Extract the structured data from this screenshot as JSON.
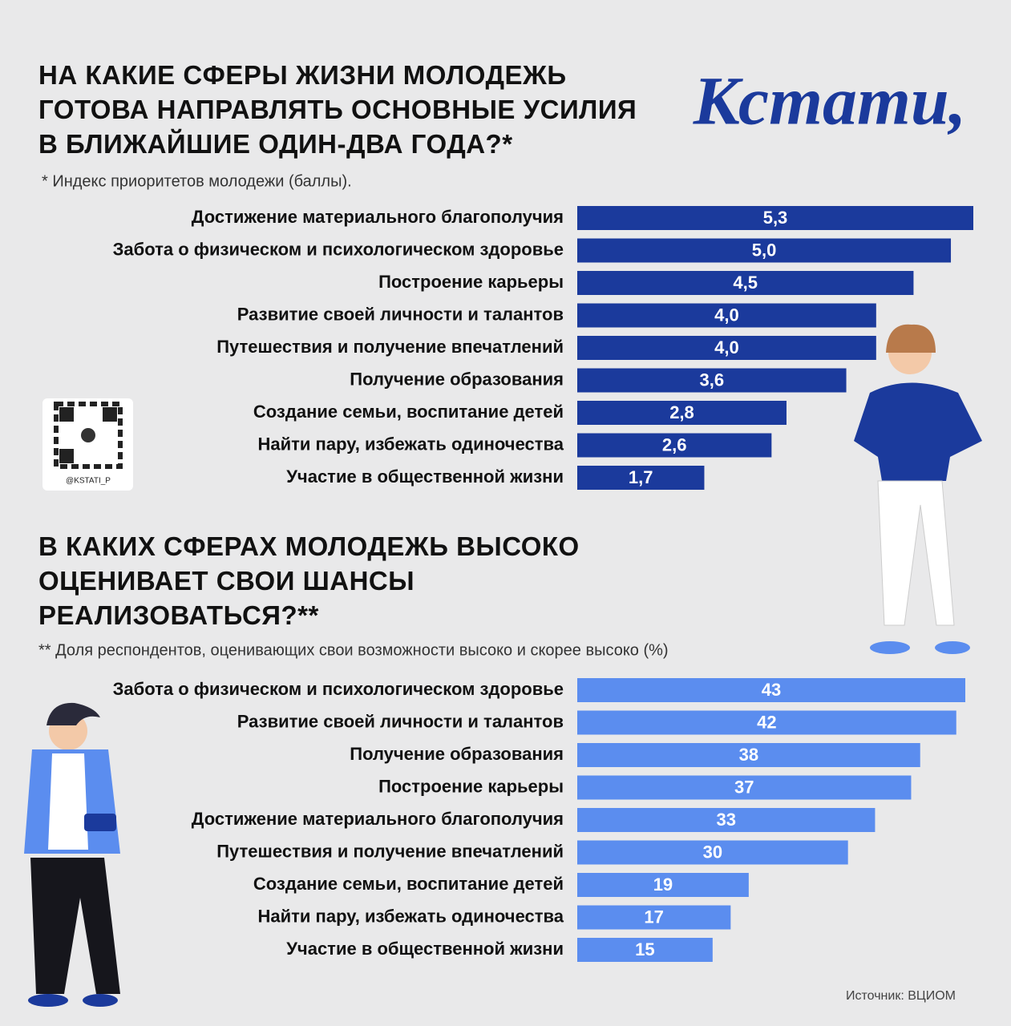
{
  "brand": "Кстати,",
  "qr_label": "@KSTATI_P",
  "source": "Источник: ВЦИОМ",
  "chart_data": [
    {
      "type": "bar",
      "orientation": "horizontal",
      "title": "НА КАКИЕ СФЕРЫ ЖИЗНИ МОЛОДЕЖЬ\nГОТОВА НАПРАВЛЯТЬ ОСНОВНЫЕ УСИЛИЯ\nВ БЛИЖАЙШИЕ ОДИН-ДВА ГОДА?*",
      "subtitle": "* Индекс приоритетов молодежи (баллы).",
      "categories": [
        "Достижение материального благополучия",
        "Забота о физическом и психологическом здоровье",
        "Построение карьеры",
        "Развитие своей личности и талантов",
        "Путешествия и получение впечатлений",
        "Получение образования",
        "Создание семьи, воспитание детей",
        "Найти пару, избежать одиночества",
        "Участие в общественной жизни"
      ],
      "values": [
        5.3,
        5.0,
        4.5,
        4.0,
        4.0,
        3.6,
        2.8,
        2.6,
        1.7
      ],
      "value_labels": [
        "5,3",
        "5,0",
        "4,5",
        "4,0",
        "4,0",
        "3,6",
        "2,8",
        "2,6",
        "1,7"
      ],
      "color": "#1b3a9c"
    },
    {
      "type": "bar",
      "orientation": "horizontal",
      "title": "В КАКИХ СФЕРАХ МОЛОДЕЖЬ ВЫСОКО\nОЦЕНИВАЕТ СВОИ ШАНСЫ\nРЕАЛИЗОВАТЬСЯ?**",
      "subtitle": "** Доля респондентов, оценивающих свои возможности высоко и скорее высоко (%)",
      "categories": [
        "Забота о физическом и психологическом здоровье",
        "Развитие своей личности и талантов",
        "Получение образования",
        "Построение карьеры",
        "Достижение материального благополучия",
        "Путешествия и получение впечатлений",
        "Создание семьи, воспитание детей",
        "Найти пару, избежать одиночества",
        "Участие в общественной жизни"
      ],
      "values": [
        43,
        42,
        38,
        37,
        33,
        30,
        19,
        17,
        15
      ],
      "color": "#5b8def"
    }
  ]
}
